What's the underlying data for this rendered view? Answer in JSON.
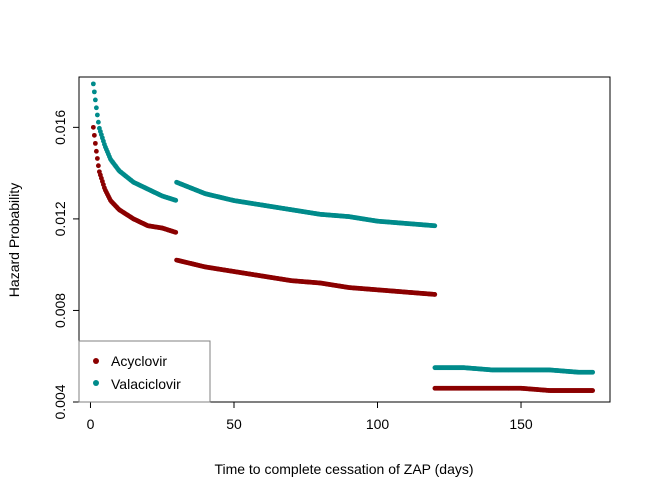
{
  "chart_data": {
    "type": "scatter",
    "title": "",
    "xlabel": "Time to complete cessation of ZAP (days)",
    "ylabel": "Hazard Probability",
    "xlim": [
      -4,
      181
    ],
    "ylim": [
      0.004,
      0.0182
    ],
    "xticks": [
      0,
      50,
      100,
      150
    ],
    "xtick_labels": [
      "0",
      "50",
      "100",
      "150"
    ],
    "yticks": [
      0.004,
      0.008,
      0.012,
      0.016
    ],
    "ytick_labels": [
      "0.004",
      "0.008",
      "0.012",
      "0.016"
    ],
    "grid": false,
    "legend_position": "bottom-left",
    "series": [
      {
        "name": "Acyclovir",
        "color": "#8B0000",
        "segments": [
          {
            "x": [
              1,
              2,
              3,
              5,
              7,
              10,
              15,
              20,
              25,
              30
            ],
            "y": [
              0.016,
              0.015,
              0.0141,
              0.0133,
              0.0128,
              0.0124,
              0.012,
              0.0117,
              0.0116,
              0.0114
            ]
          },
          {
            "x": [
              30,
              40,
              50,
              60,
              70,
              80,
              90,
              100,
              110,
              120
            ],
            "y": [
              0.0102,
              0.0099,
              0.0097,
              0.0095,
              0.0093,
              0.0092,
              0.009,
              0.0089,
              0.0088,
              0.0087
            ]
          },
          {
            "x": [
              120,
              130,
              140,
              150,
              160,
              170,
              175
            ],
            "y": [
              0.0046,
              0.0046,
              0.0046,
              0.0046,
              0.0045,
              0.0045,
              0.0045
            ]
          }
        ]
      },
      {
        "name": "Valaciclovir",
        "color": "#008B8B",
        "segments": [
          {
            "x": [
              1,
              2,
              3,
              5,
              7,
              10,
              15,
              20,
              25,
              30
            ],
            "y": [
              0.0179,
              0.0169,
              0.016,
              0.0152,
              0.0146,
              0.0141,
              0.0136,
              0.0133,
              0.013,
              0.0128
            ]
          },
          {
            "x": [
              30,
              40,
              50,
              60,
              70,
              80,
              90,
              100,
              110,
              120
            ],
            "y": [
              0.0136,
              0.0131,
              0.0128,
              0.0126,
              0.0124,
              0.0122,
              0.0121,
              0.0119,
              0.0118,
              0.0117
            ]
          },
          {
            "x": [
              120,
              130,
              140,
              150,
              160,
              170,
              175
            ],
            "y": [
              0.0055,
              0.0055,
              0.0054,
              0.0054,
              0.0054,
              0.0053,
              0.0053
            ]
          }
        ]
      }
    ]
  }
}
